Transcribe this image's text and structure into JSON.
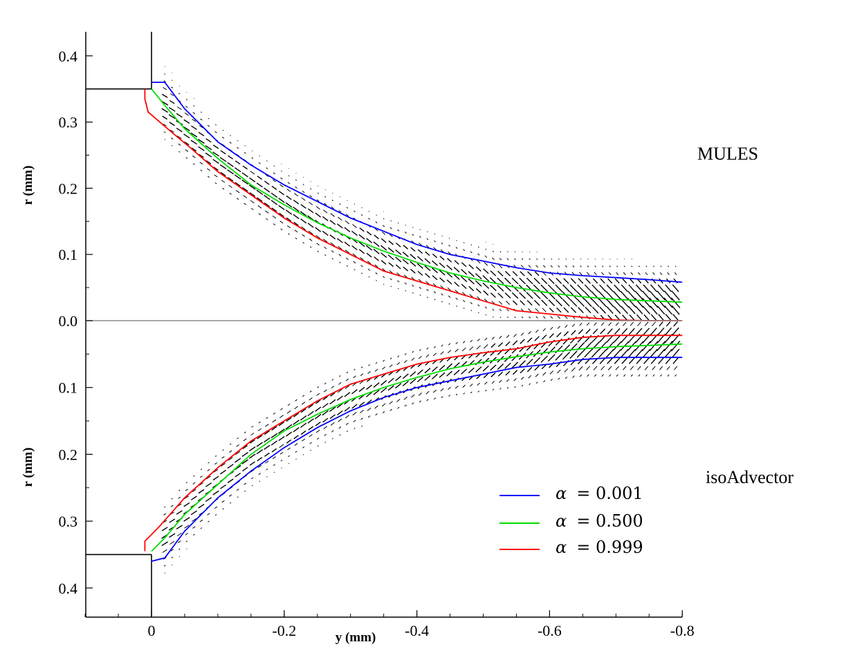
{
  "chart_data": {
    "type": "line",
    "title": "",
    "xlabel": "y (mm)",
    "ylabel_top": "r (mm)",
    "ylabel_bottom": "r (mm)",
    "xlim": [
      0.1,
      -0.8
    ],
    "x_ticks": [
      "0",
      "-0.2",
      "-0.4",
      "-0.6",
      "-0.8"
    ],
    "x_tick_values": [
      0,
      -0.2,
      -0.4,
      -0.6,
      -0.8
    ],
    "y_ticks_top": [
      "0.4",
      "0.3",
      "0.2",
      "0.1",
      "0.0"
    ],
    "y_ticks_top_values": [
      0.4,
      0.3,
      0.2,
      0.1,
      0.0
    ],
    "y_ticks_bottom": [
      "0.1",
      "0.2",
      "0.3",
      "0.4"
    ],
    "y_ticks_bottom_values": [
      0.1,
      0.2,
      0.3,
      0.4
    ],
    "ylim_top": [
      0,
      0.435
    ],
    "ylim_bottom": [
      0,
      0.445
    ],
    "panels": [
      {
        "name": "MULES",
        "label": "MULES",
        "series": [
          {
            "name": "α = 0.001",
            "color": "#0000ff",
            "x": [
              0,
              -0.02,
              -0.05,
              -0.1,
              -0.15,
              -0.2,
              -0.25,
              -0.3,
              -0.35,
              -0.4,
              -0.45,
              -0.5,
              -0.55,
              -0.6,
              -0.65,
              -0.7,
              -0.75,
              -0.8
            ],
            "r": [
              0.36,
              0.36,
              0.32,
              0.27,
              0.235,
              0.205,
              0.18,
              0.155,
              0.135,
              0.115,
              0.1,
              0.09,
              0.08,
              0.072,
              0.068,
              0.065,
              0.062,
              0.058
            ]
          },
          {
            "name": "α = 0.500",
            "color": "#00dd00",
            "x": [
              0,
              -0.02,
              -0.05,
              -0.1,
              -0.15,
              -0.2,
              -0.25,
              -0.3,
              -0.35,
              -0.4,
              -0.45,
              -0.5,
              -0.55,
              -0.6,
              -0.65,
              -0.7,
              -0.75,
              -0.8
            ],
            "r": [
              0.35,
              0.325,
              0.29,
              0.245,
              0.205,
              0.175,
              0.148,
              0.125,
              0.105,
              0.088,
              0.072,
              0.06,
              0.05,
              0.042,
              0.036,
              0.032,
              0.03,
              0.028
            ]
          },
          {
            "name": "α = 0.999",
            "color": "#ff0000",
            "x": [
              0.01,
              0.01,
              0.005,
              -0.03,
              -0.06,
              -0.1,
              -0.15,
              -0.2,
              -0.25,
              -0.3,
              -0.35,
              -0.4,
              -0.45,
              -0.5,
              -0.55,
              -0.6,
              -0.65,
              -0.7,
              -0.75,
              -0.8
            ],
            "r": [
              0.35,
              0.335,
              0.315,
              0.285,
              0.26,
              0.225,
              0.19,
              0.155,
              0.125,
              0.1,
              0.075,
              0.06,
              0.045,
              0.03,
              0.015,
              0.01,
              0.005,
              0.001,
              0.0,
              0.0
            ]
          }
        ]
      },
      {
        "name": "isoAdvector",
        "label": "isoAdvector",
        "series": [
          {
            "name": "α = 0.001",
            "color": "#0000ff",
            "x": [
              0,
              -0.02,
              -0.05,
              -0.1,
              -0.15,
              -0.2,
              -0.25,
              -0.3,
              -0.35,
              -0.4,
              -0.45,
              -0.5,
              -0.55,
              -0.6,
              -0.65,
              -0.7,
              -0.75,
              -0.8
            ],
            "r": [
              0.36,
              0.355,
              0.315,
              0.265,
              0.225,
              0.19,
              0.16,
              0.135,
              0.115,
              0.1,
              0.09,
              0.08,
              0.07,
              0.065,
              0.058,
              0.055,
              0.055,
              0.055
            ]
          },
          {
            "name": "α = 0.500",
            "color": "#00dd00",
            "x": [
              0,
              -0.02,
              -0.05,
              -0.1,
              -0.15,
              -0.2,
              -0.25,
              -0.3,
              -0.35,
              -0.4,
              -0.45,
              -0.5,
              -0.55,
              -0.6,
              -0.65,
              -0.7,
              -0.75,
              -0.8
            ],
            "r": [
              0.345,
              0.325,
              0.29,
              0.245,
              0.2,
              0.165,
              0.14,
              0.118,
              0.1,
              0.085,
              0.072,
              0.062,
              0.054,
              0.047,
              0.042,
              0.039,
              0.037,
              0.035
            ]
          },
          {
            "name": "α = 0.999",
            "color": "#ff0000",
            "x": [
              0.01,
              0.01,
              -0.01,
              -0.05,
              -0.1,
              -0.15,
              -0.2,
              -0.25,
              -0.3,
              -0.35,
              -0.4,
              -0.45,
              -0.5,
              -0.55,
              -0.6,
              -0.65,
              -0.7,
              -0.75,
              -0.8
            ],
            "r": [
              0.345,
              0.33,
              0.31,
              0.265,
              0.22,
              0.18,
              0.15,
              0.12,
              0.095,
              0.08,
              0.065,
              0.055,
              0.048,
              0.042,
              0.032,
              0.025,
              0.022,
              0.022,
              0.022
            ]
          }
        ]
      }
    ],
    "legend": [
      {
        "symbol": "α",
        "text": "= 0.001",
        "color": "#0000ff"
      },
      {
        "symbol": "α",
        "text": "= 0.500",
        "color": "#00dd00"
      },
      {
        "symbol": "α",
        "text": "= 0.999",
        "color": "#ff0000"
      }
    ],
    "legend_position": "bottom-right",
    "nozzle_radius": 0.35,
    "vector_field": "velocity vectors drawn between the contours"
  }
}
